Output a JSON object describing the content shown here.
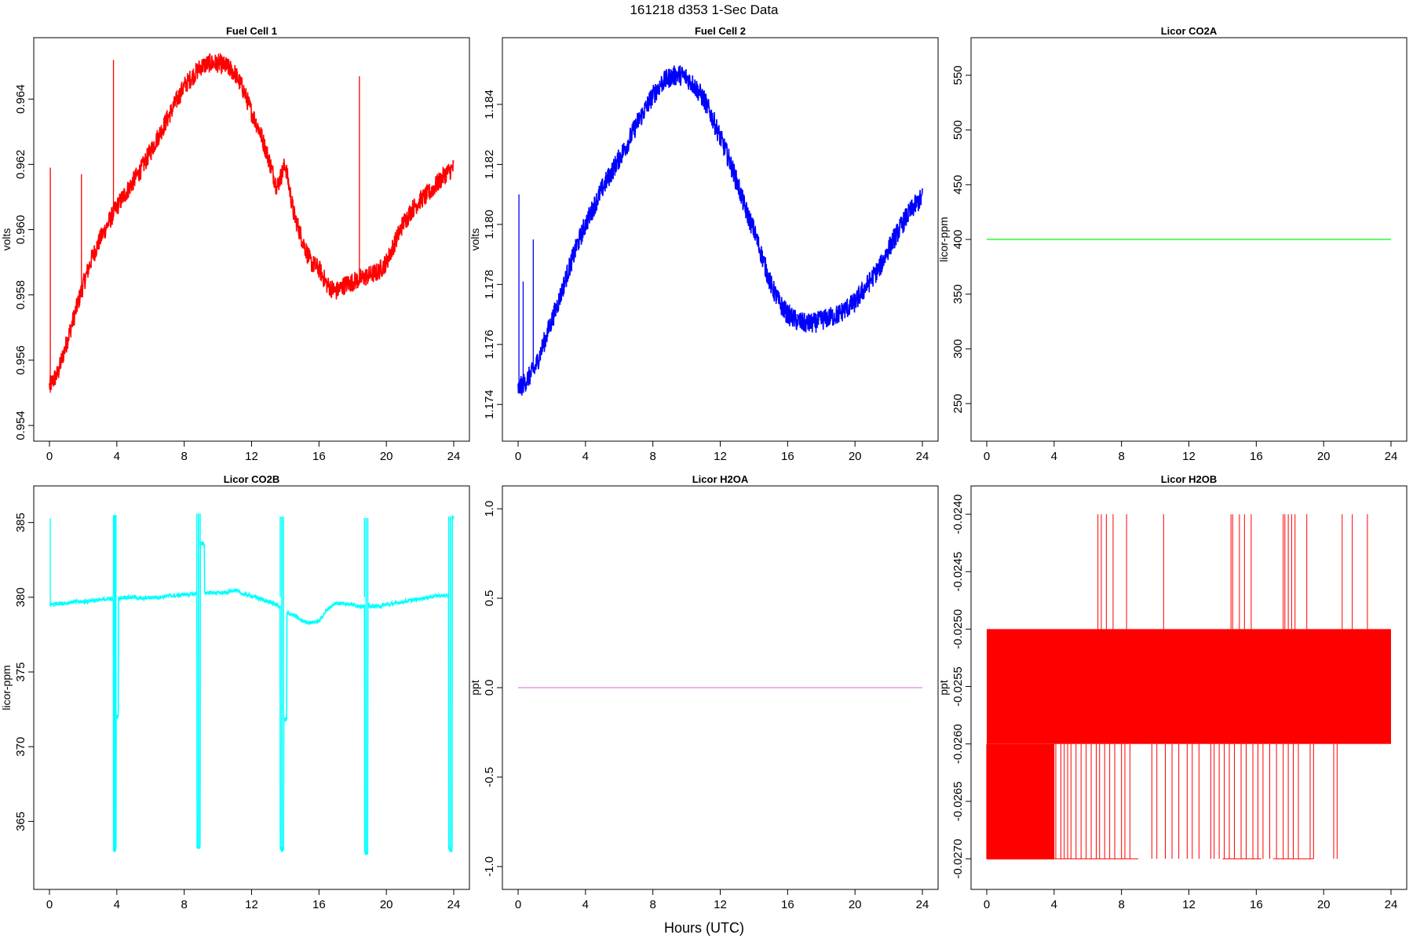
{
  "figure": {
    "title": "161218   d353   1-Sec Data",
    "xlabel": "Hours (UTC)"
  },
  "chart_data": [
    {
      "type": "line",
      "title": "Fuel Cell 1",
      "ylabel": "volts",
      "color": "#ff0000",
      "xlim": [
        0,
        24
      ],
      "ylim": [
        0.954,
        0.9654
      ],
      "xticks": [
        0,
        4,
        8,
        12,
        16,
        20,
        24
      ],
      "yticks": [
        "0.954",
        "0.956",
        "0.958",
        "0.960",
        "0.962",
        "0.964"
      ],
      "x": [
        0,
        0.5,
        1,
        1.5,
        2,
        2.5,
        3,
        3.5,
        4,
        4.5,
        5,
        5.5,
        6,
        6.5,
        7,
        7.5,
        8,
        8.5,
        9,
        9.5,
        10,
        10.5,
        11,
        11.5,
        12,
        12.5,
        13,
        13.5,
        14,
        14.5,
        15,
        15.5,
        16,
        16.5,
        17,
        17.5,
        18,
        18.5,
        19,
        19.5,
        20,
        20.5,
        21,
        21.5,
        22,
        22.5,
        23,
        23.5,
        24
      ],
      "values": [
        0.9552,
        0.9556,
        0.9565,
        0.9574,
        0.9583,
        0.9591,
        0.9597,
        0.9602,
        0.9607,
        0.9611,
        0.9615,
        0.9619,
        0.9624,
        0.9629,
        0.9634,
        0.9639,
        0.9644,
        0.9647,
        0.965,
        0.9651,
        0.9651,
        0.965,
        0.9648,
        0.9643,
        0.9636,
        0.963,
        0.9622,
        0.9613,
        0.962,
        0.9605,
        0.9597,
        0.959,
        0.9588,
        0.9583,
        0.9581,
        0.9583,
        0.9584,
        0.9585,
        0.9586,
        0.9587,
        0.959,
        0.9596,
        0.9602,
        0.9606,
        0.9609,
        0.9611,
        0.9614,
        0.9617,
        0.9619
      ],
      "noise": 0.0003,
      "spikes": [
        {
          "x": 0.05,
          "from": 0.955,
          "to": 0.9619
        },
        {
          "x": 1.9,
          "from": 0.958,
          "to": 0.9617
        },
        {
          "x": 3.8,
          "from": 0.9605,
          "to": 0.9652
        },
        {
          "x": 18.4,
          "from": 0.9585,
          "to": 0.9647
        }
      ]
    },
    {
      "type": "line",
      "title": "Fuel Cell 2",
      "ylabel": "volts",
      "color": "#0000ff",
      "xlim": [
        0,
        24
      ],
      "ylim": [
        1.1733,
        1.1857
      ],
      "xticks": [
        0,
        4,
        8,
        12,
        16,
        20,
        24
      ],
      "yticks": [
        "1.174",
        "1.176",
        "1.178",
        "1.180",
        "1.182",
        "1.184"
      ],
      "x": [
        0,
        0.5,
        1,
        1.5,
        2,
        2.5,
        3,
        3.5,
        4,
        4.5,
        5,
        5.5,
        6,
        6.5,
        7,
        7.5,
        8,
        8.5,
        9,
        9.5,
        10,
        10.5,
        11,
        11.5,
        12,
        12.5,
        13,
        13.5,
        14,
        14.5,
        15,
        15.5,
        16,
        16.5,
        17,
        17.5,
        18,
        18.5,
        19,
        19.5,
        20,
        20.5,
        21,
        21.5,
        22,
        22.5,
        23,
        23.5,
        24
      ],
      "values": [
        1.1745,
        1.1748,
        1.1752,
        1.176,
        1.1768,
        1.1776,
        1.1785,
        1.1793,
        1.18,
        1.1806,
        1.1812,
        1.1817,
        1.1822,
        1.1827,
        1.1833,
        1.1838,
        1.1843,
        1.1847,
        1.1849,
        1.185,
        1.1849,
        1.1846,
        1.1842,
        1.1836,
        1.1829,
        1.1822,
        1.1814,
        1.1805,
        1.1798,
        1.1789,
        1.178,
        1.1774,
        1.177,
        1.1768,
        1.1767,
        1.1767,
        1.1768,
        1.1769,
        1.177,
        1.1772,
        1.1774,
        1.1778,
        1.1782,
        1.1786,
        1.1792,
        1.1797,
        1.1802,
        1.1806,
        1.1809
      ],
      "noise": 0.00035,
      "spikes": [
        {
          "x": 0.05,
          "from": 1.1745,
          "to": 1.181
        },
        {
          "x": 0.3,
          "from": 1.1748,
          "to": 1.1781
        },
        {
          "x": 0.9,
          "from": 1.1752,
          "to": 1.1795
        }
      ]
    },
    {
      "type": "line",
      "title": "Licor CO2A",
      "ylabel": "licor-ppm",
      "color": "#00ff00",
      "xlim": [
        0,
        24
      ],
      "ylim": [
        230,
        570
      ],
      "xticks": [
        0,
        4,
        8,
        12,
        16,
        20,
        24
      ],
      "yticks": [
        "250",
        "300",
        "350",
        "400",
        "450",
        "500",
        "550"
      ],
      "x": [
        0,
        24
      ],
      "values": [
        400,
        400
      ],
      "noise": 0,
      "spikes": []
    },
    {
      "type": "line",
      "title": "Licor CO2B",
      "ylabel": "licor-ppm",
      "color": "#00ffff",
      "xlim": [
        0,
        24
      ],
      "ylim": [
        361.5,
        386.4
      ],
      "xticks": [
        0,
        4,
        8,
        12,
        16,
        20,
        24
      ],
      "yticks": [
        "365",
        "370",
        "375",
        "380",
        "385"
      ],
      "x": [
        0,
        0.5,
        1,
        1.5,
        2,
        2.5,
        3,
        3.5,
        4,
        4.5,
        5,
        5.5,
        6,
        6.5,
        7,
        7.5,
        8,
        8.5,
        9,
        9.5,
        10,
        10.5,
        11,
        11.5,
        12,
        12.5,
        13,
        13.5,
        14,
        14.5,
        15,
        15.5,
        16,
        16.5,
        17,
        17.5,
        18,
        18.5,
        19,
        19.5,
        20,
        20.5,
        21,
        21.5,
        22,
        22.5,
        23,
        23.5,
        24
      ],
      "values": [
        379.5,
        379.6,
        379.6,
        379.7,
        379.7,
        379.8,
        379.8,
        379.9,
        379.9,
        380.0,
        380.0,
        379.9,
        380.0,
        380.0,
        380.1,
        380.1,
        380.2,
        380.2,
        380.3,
        380.3,
        380.3,
        380.3,
        380.5,
        380.2,
        380.1,
        379.9,
        379.7,
        379.5,
        379.0,
        378.8,
        378.4,
        378.3,
        378.4,
        379.2,
        379.6,
        379.6,
        379.5,
        379.4,
        379.4,
        379.4,
        379.5,
        379.6,
        379.7,
        379.8,
        379.9,
        380.0,
        380.1,
        380.1,
        380.1
      ],
      "noise": 0.12,
      "dropouts": [
        {
          "start": 3.8,
          "end": 3.95,
          "low": 363.0,
          "peak": 385.5,
          "tail": 372.0,
          "tail_end": 4.1
        },
        {
          "start": 8.75,
          "end": 8.95,
          "low": 363.2,
          "peak": 385.6,
          "tail": 383.6,
          "tail_end": 9.2
        },
        {
          "start": 13.7,
          "end": 13.9,
          "low": 363.0,
          "peak": 385.4,
          "tail": 371.8,
          "tail_end": 14.1
        },
        {
          "start": 18.7,
          "end": 18.9,
          "low": 362.8,
          "peak": 385.3,
          "tail": 379.5,
          "tail_end": 19.0
        },
        {
          "start": 23.7,
          "end": 23.9,
          "low": 363.0,
          "peak": 385.4,
          "tail": 385.4,
          "tail_end": 24.0
        }
      ],
      "spikes": [
        {
          "x": 0.05,
          "from": 379.5,
          "to": 385.3
        }
      ]
    },
    {
      "type": "line",
      "title": "Licor H2OA",
      "ylabel": "ppt",
      "color": "#dd88dd",
      "xlim": [
        0,
        24
      ],
      "ylim": [
        -1.04,
        1.04
      ],
      "xticks": [
        0,
        4,
        8,
        12,
        16,
        20,
        24
      ],
      "yticks": [
        "-1.0",
        "-0.5",
        "0.0",
        "0.5",
        "1.0"
      ],
      "x": [
        0,
        24
      ],
      "values": [
        0,
        0
      ],
      "noise": 0,
      "spikes": []
    },
    {
      "type": "line",
      "title": "Licor H2OB",
      "ylabel": "ppt",
      "color": "#ff0000",
      "xlim": [
        0,
        24
      ],
      "ylim": [
        -0.02713,
        -0.02389
      ],
      "xticks": [
        0,
        4,
        8,
        12,
        16,
        20,
        24
      ],
      "yticks": [
        "-0.0270",
        "-0.0265",
        "-0.0260",
        "-0.0255",
        "-0.0250",
        "-0.0245",
        "-0.0240"
      ],
      "band": {
        "low": -0.026,
        "high": -0.025,
        "x_start": 0,
        "x_end": 24
      },
      "dense_low": {
        "x_start": 0,
        "x_end": 4,
        "low": -0.027,
        "high": -0.026
      },
      "spikes_up": [
        6.6,
        6.8,
        7.1,
        7.5,
        8.3,
        10.5,
        14.5,
        14.6,
        15.0,
        15.3,
        15.7,
        17.6,
        17.7,
        17.9,
        18.1,
        18.3,
        19.0,
        21.1,
        21.7,
        22.6
      ],
      "spikes_down": [
        4.1,
        4.4,
        4.6,
        4.8,
        5.0,
        5.3,
        5.6,
        5.9,
        6.2,
        6.5,
        6.7,
        7.0,
        7.3,
        7.6,
        8.0,
        8.2,
        8.5,
        9.8,
        10.1,
        10.6,
        11.0,
        11.4,
        11.9,
        12.2,
        12.6,
        13.3,
        13.5,
        13.8,
        14.1,
        14.4,
        14.7,
        15.1,
        15.4,
        15.8,
        16.1,
        16.4,
        16.8,
        17.2,
        17.6,
        17.9,
        18.2,
        18.5,
        19.2,
        19.4,
        20.6,
        20.8
      ],
      "noise": 0
    }
  ]
}
